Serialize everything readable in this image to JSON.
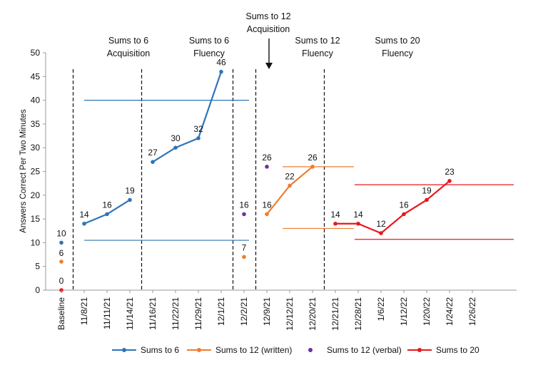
{
  "chart_data": {
    "type": "line",
    "ylabel": "Answers Correct Per Two Minutes",
    "xlabel": "",
    "ylim": [
      0,
      50
    ],
    "yticks": [
      0,
      5,
      10,
      15,
      20,
      25,
      30,
      35,
      40,
      45,
      50
    ],
    "categories": [
      "Baseline",
      "11/8/21",
      "11/11/21",
      "11/14/21",
      "11/16/21",
      "11/22/21",
      "11/29/21",
      "12/1/21",
      "12/2/21",
      "12/9/21",
      "12/12/21",
      "12/20/21",
      "12/21/21",
      "12/28/21",
      "1/6/22",
      "1/12/22",
      "1/20/22",
      "1/24/22",
      "1/26/22"
    ],
    "phases": [
      {
        "lines": [
          "Sums to 6",
          "Acquisition"
        ]
      },
      {
        "lines": [
          "Sums to 6",
          "Fluency"
        ]
      },
      {
        "lines": [
          "Sums to 12",
          "Acquisition"
        ]
      },
      {
        "lines": [
          "Sums to 12",
          "Fluency"
        ]
      },
      {
        "lines": [
          "Sums to 20",
          "Fluency"
        ]
      }
    ],
    "baseline_points": [
      {
        "series": "Sums to 6",
        "value": 10,
        "label": "10"
      },
      {
        "series": "Sums to 12 (written)",
        "value": 6,
        "label": "6"
      },
      {
        "series": "Sums to 20",
        "value": 0,
        "label": "0"
      }
    ],
    "series": [
      {
        "name": "Sums to 6",
        "color": "#2e75b6",
        "segments": [
          {
            "x": [
              "11/8/21",
              "11/11/21",
              "11/14/21"
            ],
            "values": [
              14,
              16,
              19
            ]
          },
          {
            "x": [
              "11/16/21",
              "11/22/21",
              "11/29/21",
              "12/1/21"
            ],
            "values": [
              27,
              30,
              32,
              46
            ]
          }
        ]
      },
      {
        "name": "Sums to 12 (written)",
        "color": "#ed7d31",
        "segments": [
          {
            "x": [
              "12/2/21"
            ],
            "values": [
              7
            ]
          },
          {
            "x": [
              "12/9/21",
              "12/12/21",
              "12/20/21"
            ],
            "values": [
              16,
              22,
              26
            ]
          }
        ]
      },
      {
        "name": "Sums to 12 (verbal)",
        "color": "#7030a0",
        "segments": [
          {
            "x": [
              "12/2/21"
            ],
            "values": [
              16
            ]
          },
          {
            "x": [
              "12/9/21"
            ],
            "values": [
              26
            ]
          }
        ]
      },
      {
        "name": "Sums to 20",
        "color": "#e8181d",
        "segments": [
          {
            "x": [
              "12/21/21",
              "12/28/21",
              "1/6/22",
              "1/12/22",
              "1/20/22",
              "1/24/22"
            ],
            "values": [
              14,
              14,
              12,
              16,
              19,
              23
            ]
          }
        ]
      }
    ],
    "data_labels": [
      {
        "x": "Baseline",
        "value": 10,
        "label": "10"
      },
      {
        "x": "Baseline",
        "value": 6,
        "label": "6"
      },
      {
        "x": "Baseline",
        "value": 0,
        "label": "0"
      },
      {
        "x": "11/8/21",
        "value": 14,
        "label": "14"
      },
      {
        "x": "11/11/21",
        "value": 16,
        "label": "16"
      },
      {
        "x": "11/14/21",
        "value": 19,
        "label": "19"
      },
      {
        "x": "11/16/21",
        "value": 27,
        "label": "27"
      },
      {
        "x": "11/22/21",
        "value": 30,
        "label": "30"
      },
      {
        "x": "11/29/21",
        "value": 32,
        "label": "32"
      },
      {
        "x": "12/1/21",
        "value": 46,
        "label": "46"
      },
      {
        "x": "12/2/21",
        "value": 16,
        "label": "16"
      },
      {
        "x": "12/2/21",
        "value": 7,
        "label": "7"
      },
      {
        "x": "12/9/21",
        "value": 26,
        "label": "26"
      },
      {
        "x": "12/9/21",
        "value": 16,
        "label": "16"
      },
      {
        "x": "12/12/21",
        "value": 22,
        "label": "22"
      },
      {
        "x": "12/20/21",
        "value": 26,
        "label": "26"
      },
      {
        "x": "12/21/21",
        "value": 14,
        "label": "14"
      },
      {
        "x": "12/28/21",
        "value": 14,
        "label": "14"
      },
      {
        "x": "1/6/22",
        "value": 12,
        "label": "12"
      },
      {
        "x": "1/12/22",
        "value": 16,
        "label": "16"
      },
      {
        "x": "1/20/22",
        "value": 19,
        "label": "19"
      },
      {
        "x": "1/24/22",
        "value": 23,
        "label": "23"
      }
    ],
    "aim_lines": [
      {
        "phase": "Sums to 6",
        "color": "#2e75b6",
        "values": [
          40,
          10.5
        ]
      },
      {
        "phase": "Sums to 12 Fluency",
        "color": "#ed7d31",
        "values": [
          26,
          13
        ]
      },
      {
        "phase": "Sums to 20 Fluency",
        "color": "#e8181d",
        "values": [
          22.2,
          10.7
        ]
      }
    ],
    "legend": [
      {
        "name": "Sums to 6",
        "color": "#2e75b6",
        "line": true
      },
      {
        "name": "Sums to 12 (written)",
        "color": "#ed7d31",
        "line": true
      },
      {
        "name": "Sums to 12 (verbal)",
        "color": "#7030a0",
        "line": false
      },
      {
        "name": "Sums to 20",
        "color": "#e8181d",
        "line": true
      }
    ],
    "legend_position": "bottom"
  }
}
